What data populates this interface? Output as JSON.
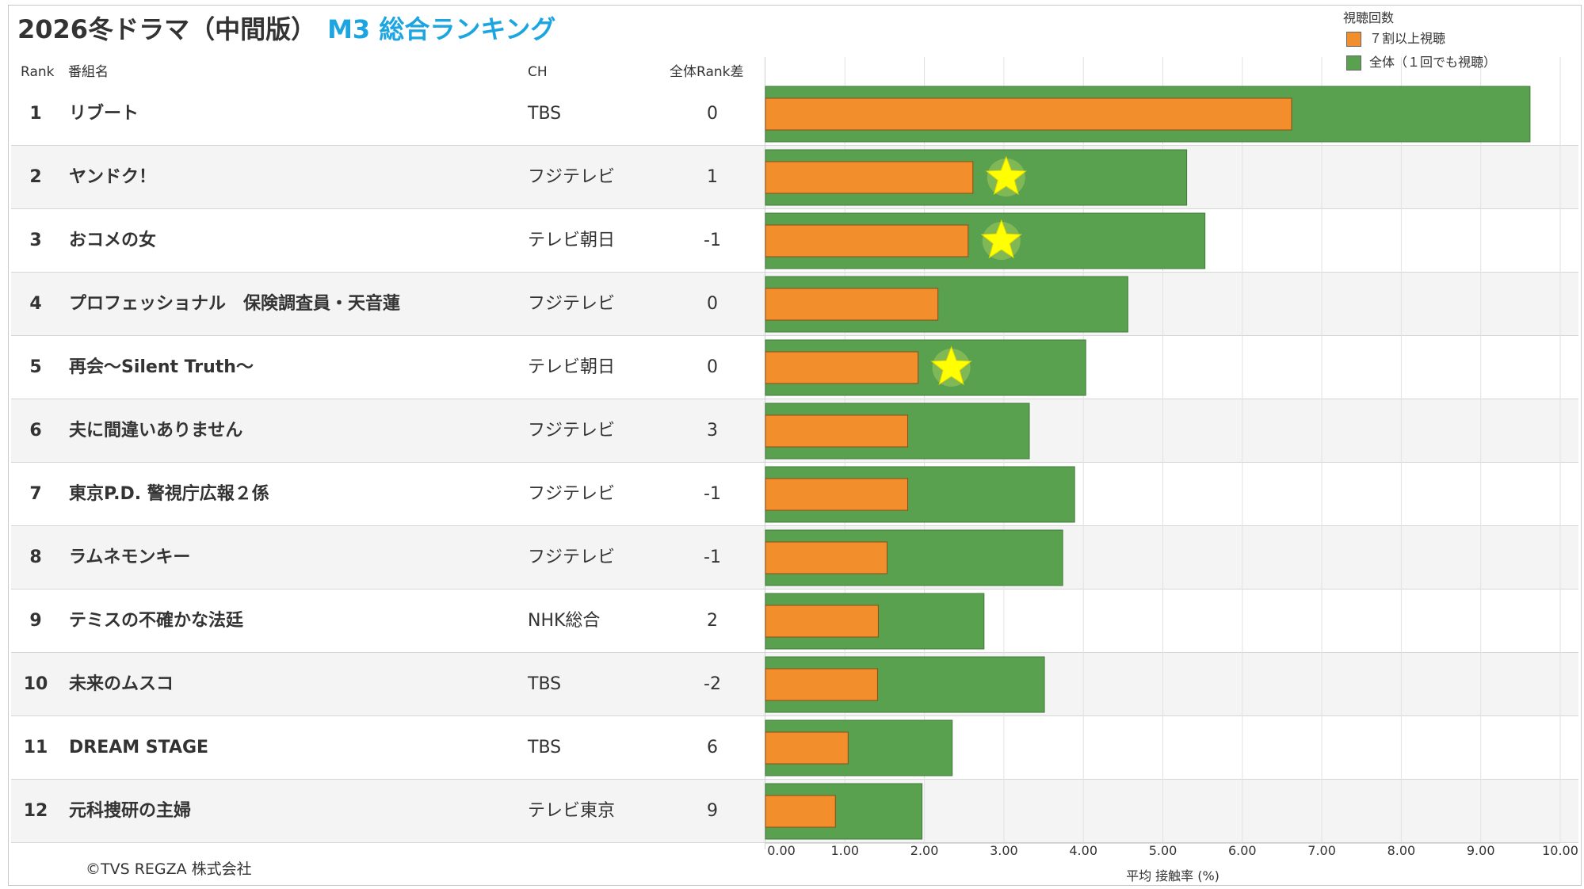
{
  "title": {
    "main": "2026冬ドラマ（中間版）",
    "sub": "M3 総合ランキング"
  },
  "headers": {
    "rank": "Rank",
    "program": "番組名",
    "ch": "CH",
    "diff": "全体Rank差"
  },
  "legend": {
    "title": "視聴回数",
    "items": [
      {
        "label": "７割以上視聴",
        "color": "#f28e2b"
      },
      {
        "label": "全体（１回でも視聴）",
        "color": "#59a14f"
      }
    ]
  },
  "chart_data": {
    "type": "bar",
    "orientation": "horizontal",
    "categories": [
      "リブート",
      "ヤンドク！",
      "おコメの女",
      "プロフェッショナル　保険調査員・天音蓮",
      "再会～Silent Truth～",
      "夫に間違いありません",
      "東京P.D. 警視庁広報２係",
      "ラムネモンキー",
      "テミスの不確かな法廷",
      "未来のムスコ",
      "DREAM STAGE",
      "元科捜研の主婦"
    ],
    "series": [
      {
        "name": "７割以上視聴",
        "values": [
          6.62,
          2.61,
          2.55,
          2.17,
          1.92,
          1.79,
          1.79,
          1.53,
          1.42,
          1.41,
          1.04,
          0.88
        ]
      },
      {
        "name": "全体（１回でも視聴）",
        "values": [
          9.62,
          5.3,
          5.53,
          4.56,
          4.03,
          3.32,
          3.89,
          3.74,
          2.75,
          3.51,
          2.35,
          1.97
        ]
      }
    ],
    "starred": [
      false,
      true,
      true,
      false,
      true,
      false,
      false,
      false,
      false,
      false,
      false,
      false
    ],
    "xlabel": "平均 接触率 (%)",
    "xlim": [
      0,
      10
    ],
    "ticks": [
      "0.00",
      "1.00",
      "2.00",
      "3.00",
      "4.00",
      "5.00",
      "6.00",
      "7.00",
      "8.00",
      "9.00",
      "10.00"
    ],
    "grid": true,
    "legend_position": "top-right"
  },
  "rows": [
    {
      "rank": "1",
      "title": "リブート",
      "ch": "TBS",
      "diff": "0"
    },
    {
      "rank": "2",
      "title": "ヤンドク！",
      "ch": "フジテレビ",
      "diff": "1"
    },
    {
      "rank": "3",
      "title": "おコメの女",
      "ch": "テレビ朝日",
      "diff": "-1"
    },
    {
      "rank": "4",
      "title": "プロフェッショナル　保険調査員・天音蓮",
      "ch": "フジテレビ",
      "diff": "0"
    },
    {
      "rank": "5",
      "title": "再会～Silent Truth～",
      "ch": "テレビ朝日",
      "diff": "0"
    },
    {
      "rank": "6",
      "title": "夫に間違いありません",
      "ch": "フジテレビ",
      "diff": "3"
    },
    {
      "rank": "7",
      "title": "東京P.D. 警視庁広報２係",
      "ch": "フジテレビ",
      "diff": "-1"
    },
    {
      "rank": "8",
      "title": "ラムネモンキー",
      "ch": "フジテレビ",
      "diff": "-1"
    },
    {
      "rank": "9",
      "title": "テミスの不確かな法廷",
      "ch": "NHK総合",
      "diff": "2"
    },
    {
      "rank": "10",
      "title": "未来のムスコ",
      "ch": "TBS",
      "diff": "-2"
    },
    {
      "rank": "11",
      "title": "DREAM STAGE",
      "ch": "TBS",
      "diff": "6"
    },
    {
      "rank": "12",
      "title": "元科捜研の主婦",
      "ch": "テレビ東京",
      "diff": "9"
    }
  ],
  "copyright": "©TVS REGZA 株式会社"
}
